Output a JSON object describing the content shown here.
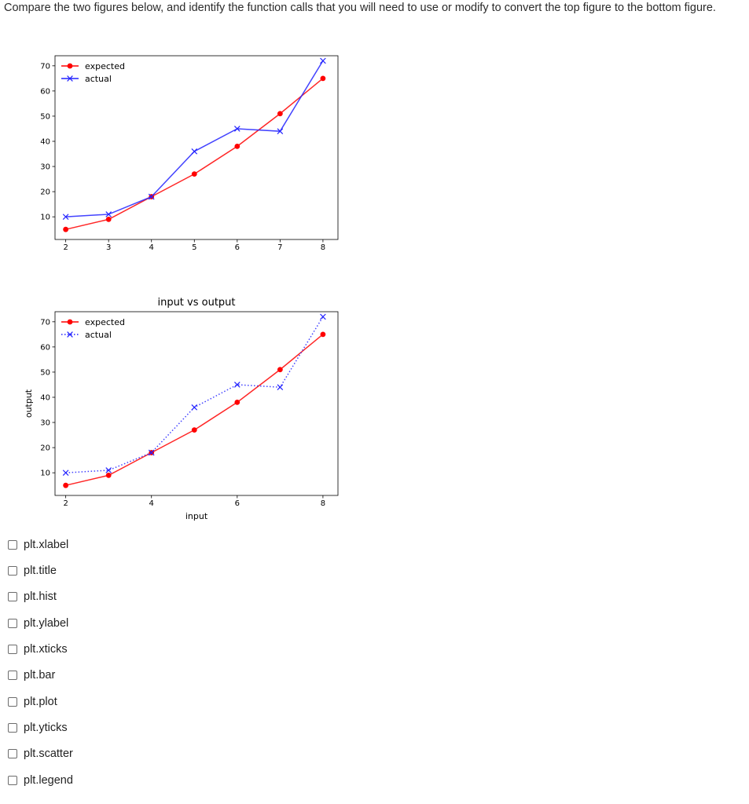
{
  "question": "Compare the two figures below, and identify the function calls that you will need to use or modify to convert the top figure to the bottom figure.",
  "colors": {
    "expected": "#ff0000",
    "actual": "#2222ff",
    "axes": "#000000"
  },
  "chart_data": [
    {
      "type": "line",
      "title": "",
      "xlabel": "",
      "ylabel": "",
      "xlim": [
        1.75,
        8.35
      ],
      "ylim": [
        1,
        74
      ],
      "xticks": [
        2,
        3,
        4,
        5,
        6,
        7,
        8
      ],
      "yticks": [
        10,
        20,
        30,
        40,
        50,
        60,
        70
      ],
      "legend": {
        "placement": "top-left",
        "entries": [
          "expected",
          "actual"
        ]
      },
      "series": [
        {
          "name": "expected",
          "x": [
            2,
            3,
            4,
            5,
            6,
            7,
            8
          ],
          "y": [
            5,
            9,
            18,
            27,
            38,
            51,
            65
          ],
          "color": "#ff0000",
          "linestyle": "solid",
          "marker": "o"
        },
        {
          "name": "actual",
          "x": [
            2,
            3,
            4,
            5,
            6,
            7,
            8
          ],
          "y": [
            10,
            11,
            18,
            36,
            45,
            44,
            72
          ],
          "color": "#2222ff",
          "linestyle": "solid",
          "marker": "x"
        }
      ]
    },
    {
      "type": "line",
      "title": "input vs output",
      "xlabel": "input",
      "ylabel": "output",
      "xlim": [
        1.75,
        8.35
      ],
      "ylim": [
        1,
        74
      ],
      "xticks": [
        2,
        4,
        6,
        8
      ],
      "yticks": [
        10,
        20,
        30,
        40,
        50,
        60,
        70
      ],
      "legend": {
        "placement": "top-left",
        "entries": [
          "expected",
          "actual"
        ]
      },
      "series": [
        {
          "name": "expected",
          "x": [
            2,
            3,
            4,
            5,
            6,
            7,
            8
          ],
          "y": [
            5,
            9,
            18,
            27,
            38,
            51,
            65
          ],
          "color": "#ff0000",
          "linestyle": "solid",
          "marker": "o"
        },
        {
          "name": "actual",
          "x": [
            2,
            3,
            4,
            5,
            6,
            7,
            8
          ],
          "y": [
            10,
            11,
            18,
            36,
            45,
            44,
            72
          ],
          "color": "#2222ff",
          "linestyle": "dotted",
          "marker": "x"
        }
      ]
    }
  ],
  "options": [
    {
      "label": "plt.xlabel",
      "checked": false
    },
    {
      "label": "plt.title",
      "checked": false
    },
    {
      "label": "plt.hist",
      "checked": false
    },
    {
      "label": "plt.ylabel",
      "checked": false
    },
    {
      "label": "plt.xticks",
      "checked": false
    },
    {
      "label": "plt.bar",
      "checked": false
    },
    {
      "label": "plt.plot",
      "checked": false
    },
    {
      "label": "plt.yticks",
      "checked": false
    },
    {
      "label": "plt.scatter",
      "checked": false
    },
    {
      "label": "plt.legend",
      "checked": false
    }
  ]
}
